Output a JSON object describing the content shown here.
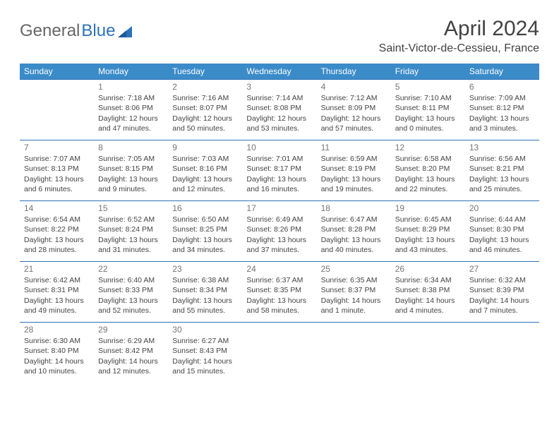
{
  "brand": {
    "part1": "General",
    "part2": "Blue"
  },
  "title": "April 2024",
  "location": "Saint-Victor-de-Cessieu, France",
  "colors": {
    "header_bg": "#3b8bc9",
    "border": "#2c72b8",
    "logo_blue": "#2c72b8",
    "text": "#424242"
  },
  "weekdays": [
    "Sunday",
    "Monday",
    "Tuesday",
    "Wednesday",
    "Thursday",
    "Friday",
    "Saturday"
  ],
  "weeks": [
    [
      {
        "n": "",
        "sr": "",
        "ss": "",
        "dl": ""
      },
      {
        "n": "1",
        "sr": "Sunrise: 7:18 AM",
        "ss": "Sunset: 8:06 PM",
        "dl": "Daylight: 12 hours and 47 minutes."
      },
      {
        "n": "2",
        "sr": "Sunrise: 7:16 AM",
        "ss": "Sunset: 8:07 PM",
        "dl": "Daylight: 12 hours and 50 minutes."
      },
      {
        "n": "3",
        "sr": "Sunrise: 7:14 AM",
        "ss": "Sunset: 8:08 PM",
        "dl": "Daylight: 12 hours and 53 minutes."
      },
      {
        "n": "4",
        "sr": "Sunrise: 7:12 AM",
        "ss": "Sunset: 8:09 PM",
        "dl": "Daylight: 12 hours and 57 minutes."
      },
      {
        "n": "5",
        "sr": "Sunrise: 7:10 AM",
        "ss": "Sunset: 8:11 PM",
        "dl": "Daylight: 13 hours and 0 minutes."
      },
      {
        "n": "6",
        "sr": "Sunrise: 7:09 AM",
        "ss": "Sunset: 8:12 PM",
        "dl": "Daylight: 13 hours and 3 minutes."
      }
    ],
    [
      {
        "n": "7",
        "sr": "Sunrise: 7:07 AM",
        "ss": "Sunset: 8:13 PM",
        "dl": "Daylight: 13 hours and 6 minutes."
      },
      {
        "n": "8",
        "sr": "Sunrise: 7:05 AM",
        "ss": "Sunset: 8:15 PM",
        "dl": "Daylight: 13 hours and 9 minutes."
      },
      {
        "n": "9",
        "sr": "Sunrise: 7:03 AM",
        "ss": "Sunset: 8:16 PM",
        "dl": "Daylight: 13 hours and 12 minutes."
      },
      {
        "n": "10",
        "sr": "Sunrise: 7:01 AM",
        "ss": "Sunset: 8:17 PM",
        "dl": "Daylight: 13 hours and 16 minutes."
      },
      {
        "n": "11",
        "sr": "Sunrise: 6:59 AM",
        "ss": "Sunset: 8:19 PM",
        "dl": "Daylight: 13 hours and 19 minutes."
      },
      {
        "n": "12",
        "sr": "Sunrise: 6:58 AM",
        "ss": "Sunset: 8:20 PM",
        "dl": "Daylight: 13 hours and 22 minutes."
      },
      {
        "n": "13",
        "sr": "Sunrise: 6:56 AM",
        "ss": "Sunset: 8:21 PM",
        "dl": "Daylight: 13 hours and 25 minutes."
      }
    ],
    [
      {
        "n": "14",
        "sr": "Sunrise: 6:54 AM",
        "ss": "Sunset: 8:22 PM",
        "dl": "Daylight: 13 hours and 28 minutes."
      },
      {
        "n": "15",
        "sr": "Sunrise: 6:52 AM",
        "ss": "Sunset: 8:24 PM",
        "dl": "Daylight: 13 hours and 31 minutes."
      },
      {
        "n": "16",
        "sr": "Sunrise: 6:50 AM",
        "ss": "Sunset: 8:25 PM",
        "dl": "Daylight: 13 hours and 34 minutes."
      },
      {
        "n": "17",
        "sr": "Sunrise: 6:49 AM",
        "ss": "Sunset: 8:26 PM",
        "dl": "Daylight: 13 hours and 37 minutes."
      },
      {
        "n": "18",
        "sr": "Sunrise: 6:47 AM",
        "ss": "Sunset: 8:28 PM",
        "dl": "Daylight: 13 hours and 40 minutes."
      },
      {
        "n": "19",
        "sr": "Sunrise: 6:45 AM",
        "ss": "Sunset: 8:29 PM",
        "dl": "Daylight: 13 hours and 43 minutes."
      },
      {
        "n": "20",
        "sr": "Sunrise: 6:44 AM",
        "ss": "Sunset: 8:30 PM",
        "dl": "Daylight: 13 hours and 46 minutes."
      }
    ],
    [
      {
        "n": "21",
        "sr": "Sunrise: 6:42 AM",
        "ss": "Sunset: 8:31 PM",
        "dl": "Daylight: 13 hours and 49 minutes."
      },
      {
        "n": "22",
        "sr": "Sunrise: 6:40 AM",
        "ss": "Sunset: 8:33 PM",
        "dl": "Daylight: 13 hours and 52 minutes."
      },
      {
        "n": "23",
        "sr": "Sunrise: 6:38 AM",
        "ss": "Sunset: 8:34 PM",
        "dl": "Daylight: 13 hours and 55 minutes."
      },
      {
        "n": "24",
        "sr": "Sunrise: 6:37 AM",
        "ss": "Sunset: 8:35 PM",
        "dl": "Daylight: 13 hours and 58 minutes."
      },
      {
        "n": "25",
        "sr": "Sunrise: 6:35 AM",
        "ss": "Sunset: 8:37 PM",
        "dl": "Daylight: 14 hours and 1 minute."
      },
      {
        "n": "26",
        "sr": "Sunrise: 6:34 AM",
        "ss": "Sunset: 8:38 PM",
        "dl": "Daylight: 14 hours and 4 minutes."
      },
      {
        "n": "27",
        "sr": "Sunrise: 6:32 AM",
        "ss": "Sunset: 8:39 PM",
        "dl": "Daylight: 14 hours and 7 minutes."
      }
    ],
    [
      {
        "n": "28",
        "sr": "Sunrise: 6:30 AM",
        "ss": "Sunset: 8:40 PM",
        "dl": "Daylight: 14 hours and 10 minutes."
      },
      {
        "n": "29",
        "sr": "Sunrise: 6:29 AM",
        "ss": "Sunset: 8:42 PM",
        "dl": "Daylight: 14 hours and 12 minutes."
      },
      {
        "n": "30",
        "sr": "Sunrise: 6:27 AM",
        "ss": "Sunset: 8:43 PM",
        "dl": "Daylight: 14 hours and 15 minutes."
      },
      {
        "n": "",
        "sr": "",
        "ss": "",
        "dl": ""
      },
      {
        "n": "",
        "sr": "",
        "ss": "",
        "dl": ""
      },
      {
        "n": "",
        "sr": "",
        "ss": "",
        "dl": ""
      },
      {
        "n": "",
        "sr": "",
        "ss": "",
        "dl": ""
      }
    ]
  ]
}
